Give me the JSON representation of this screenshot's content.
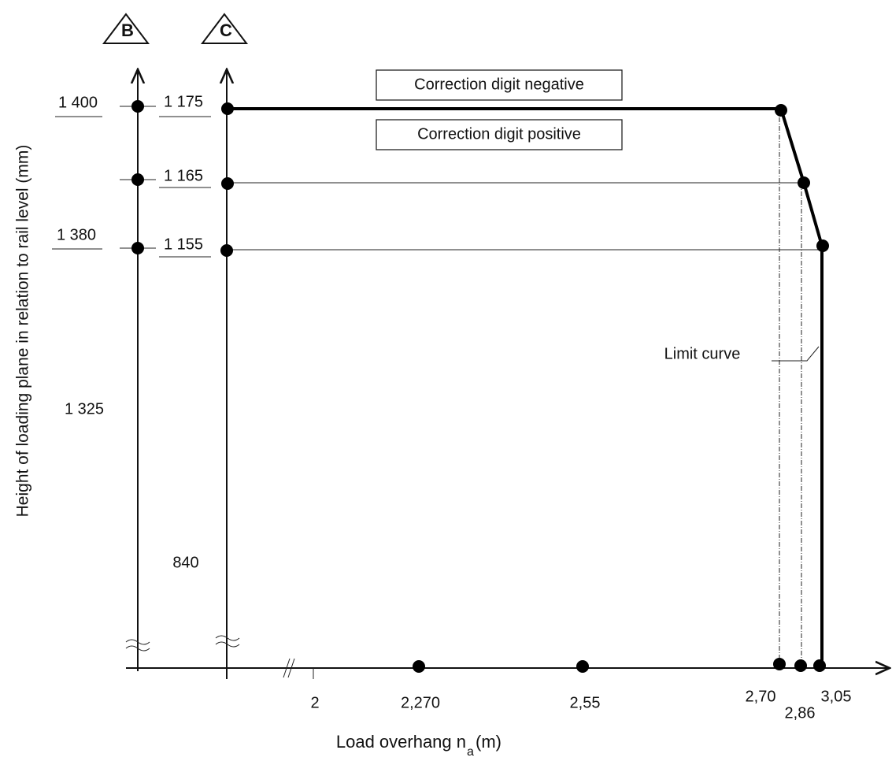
{
  "markers": {
    "left": "B",
    "right": "C"
  },
  "y_axis_title": "Height of loading plane in relation to rail level (mm)",
  "x_axis_title": {
    "main": "Load overhang n",
    "subscript": "a",
    "unit": "(m)"
  },
  "axis_b_labels": [
    "1 400",
    "1 380",
    "1 325"
  ],
  "axis_c_labels": [
    "1 175",
    "1 165",
    "1 155",
    "840"
  ],
  "boxes": {
    "negative": "Correction digit negative",
    "positive": "Correction digit positive"
  },
  "limit_curve_label": "Limit curve",
  "x_labels": [
    "2",
    "2,270",
    "2,55",
    "2,70",
    "2,86",
    "3,05"
  ]
}
